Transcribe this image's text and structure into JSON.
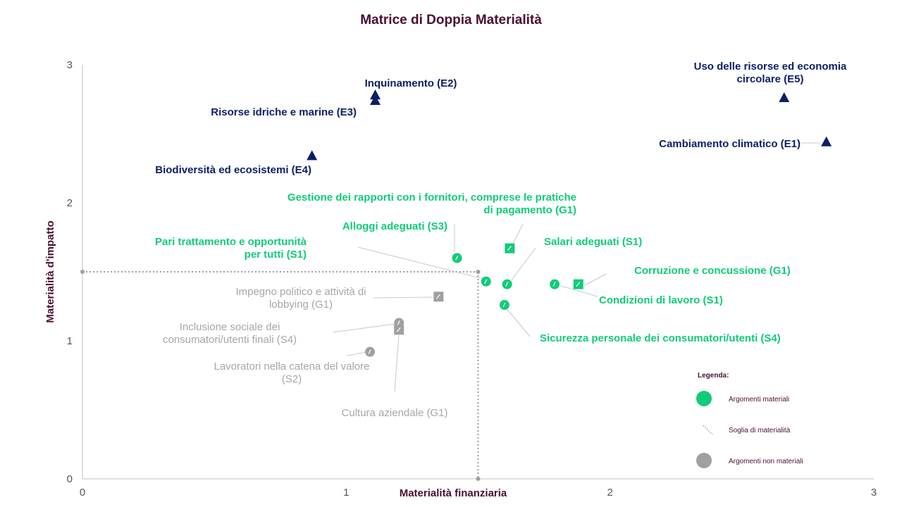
{
  "colors": {
    "title": "#4a0e33",
    "environment": "#0b1f66",
    "material": "#10cc78",
    "non_material": "#a0a0a0",
    "non_material_text": "#a6a6a6",
    "axis": "#bfbfbf",
    "leader": "#c8c8c8",
    "threshold": "#9e9e9e"
  },
  "chart_data": {
    "type": "scatter",
    "title": "Matrice di Doppia Materialità",
    "xlabel": "Materialità finanziaria",
    "ylabel": "Materialità d'impatto",
    "xlim": [
      0,
      3
    ],
    "ylim": [
      0,
      3
    ],
    "xticks": [
      "0",
      "1",
      "2",
      "3"
    ],
    "yticks": [
      "0",
      "1",
      "2",
      "3"
    ],
    "grid": false,
    "threshold": {
      "x": 1.5,
      "y": 1.5,
      "label": "Soglia di materialità"
    },
    "legend": {
      "title": "Legenda:",
      "position": "bottom-right",
      "items": [
        {
          "label": "Argomenti materiali",
          "style": "material-dot"
        },
        {
          "label": "Soglia di materialità",
          "style": "threshold-line"
        },
        {
          "label": "Argomenti non materiali",
          "style": "non-material-dot"
        }
      ]
    },
    "series": [
      {
        "category": "environment",
        "marker": "triangle",
        "points": [
          {
            "name": "Uso delle risorse ed economia circolare (E5)",
            "lines": [
              "Uso delle risorse ed economia",
              "circolare (E5)"
            ],
            "x": 2.66,
            "y": 2.76
          },
          {
            "name": "Cambiamento climatico (E1)",
            "lines": [
              "Cambiamento climatico (E1)"
            ],
            "x": 2.82,
            "y": 2.44
          },
          {
            "name": "Inquinamento (E2)",
            "lines": [
              "Inquinamento (E2)"
            ],
            "x": 1.11,
            "y": 2.78
          },
          {
            "name": "Risorse idriche e marine (E3)",
            "lines": [
              "Risorse idriche e marine (E3)"
            ],
            "x": 1.11,
            "y": 2.74
          },
          {
            "name": "Biodiversità ed ecosistemi (E4)",
            "lines": [
              "Biodiversità ed ecosistemi (E4)"
            ],
            "x": 0.87,
            "y": 2.34
          }
        ]
      },
      {
        "category": "material",
        "marker": "mixed",
        "points": [
          {
            "name": "Gestione dei rapporti con i fornitori, comprese le pratiche di pagamento (G1)",
            "lines": [
              "Gestione dei rapporti con i fornitori, comprese le pratiche",
              "di pagamento (G1)"
            ],
            "x": 1.62,
            "y": 1.67,
            "marker": "square"
          },
          {
            "name": "Alloggi adeguati (S3)",
            "lines": [
              "Alloggi adeguati (S3)"
            ],
            "x": 1.42,
            "y": 1.6,
            "marker": "circle"
          },
          {
            "name": "Pari trattamento e opportunità per tutti (S1)",
            "lines": [
              "Pari trattamento e opportunità",
              "per tutti (S1)"
            ],
            "x": 1.53,
            "y": 1.43,
            "marker": "circle"
          },
          {
            "name": "Salari adeguati (S1)",
            "lines": [
              "Salari adeguati (S1)"
            ],
            "x": 1.61,
            "y": 1.41,
            "marker": "circle"
          },
          {
            "name": "Corruzione e concussione (G1)",
            "lines": [
              "Corruzione e concussione (G1)"
            ],
            "x": 1.88,
            "y": 1.41,
            "marker": "square"
          },
          {
            "name": "Condizioni di lavoro (S1)",
            "lines": [
              "Condizioni di lavoro (S1)"
            ],
            "x": 1.79,
            "y": 1.41,
            "marker": "circle"
          },
          {
            "name": "Sicurezza personale dei consumatori/utenti (S4)",
            "lines": [
              "Sicurezza personale dei consumatori/utenti (S4)"
            ],
            "x": 1.6,
            "y": 1.26,
            "marker": "circle"
          }
        ]
      },
      {
        "category": "non_material",
        "marker": "mixed",
        "points": [
          {
            "name": "Impegno politico e attività di lobbying (G1)",
            "lines": [
              "Impegno politico e attività di",
              "lobbying (G1)"
            ],
            "x": 1.35,
            "y": 1.32,
            "marker": "square"
          },
          {
            "name": "Inclusione sociale dei consumatori/utenti finali (S4)",
            "lines": [
              "Inclusione sociale dei",
              "consumatori/utenti finali (S4)"
            ],
            "x": 1.2,
            "y": 1.13,
            "marker": "circle"
          },
          {
            "name": "Cultura aziendale (G1)",
            "lines": [
              "Cultura aziendale (G1)"
            ],
            "x": 1.2,
            "y": 1.08,
            "marker": "square"
          },
          {
            "name": "Lavoratori nella catena del valore (S2)",
            "lines": [
              "Lavoratori nella catena del valore",
              "(S2)"
            ],
            "x": 1.09,
            "y": 0.92,
            "marker": "circle"
          }
        ]
      }
    ]
  }
}
